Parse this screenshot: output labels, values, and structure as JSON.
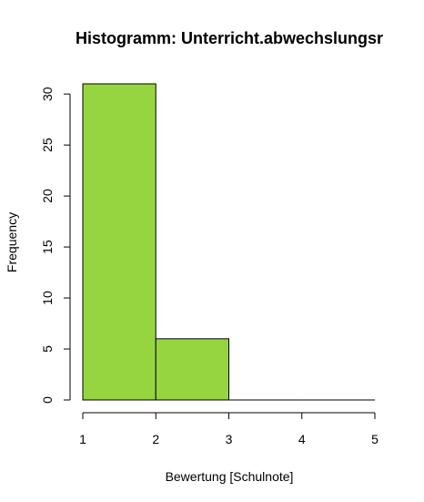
{
  "chart_data": {
    "type": "bar",
    "title": "Histogramm: Unterricht.abwechslungsr",
    "xlabel": "Bewertung [Schulnote]",
    "ylabel": "Frequency",
    "bins": [
      {
        "from": 1,
        "to": 2,
        "count": 31
      },
      {
        "from": 2,
        "to": 3,
        "count": 6
      },
      {
        "from": 3,
        "to": 4,
        "count": 0
      },
      {
        "from": 4,
        "to": 5,
        "count": 0
      }
    ],
    "x_ticks": [
      "1",
      "2",
      "3",
      "4",
      "5"
    ],
    "y_ticks": [
      "0",
      "5",
      "10",
      "15",
      "20",
      "25",
      "30"
    ],
    "xlim": [
      1,
      5
    ],
    "ylim": [
      0,
      31
    ],
    "bar_color": "#96d53f",
    "grid": false
  }
}
